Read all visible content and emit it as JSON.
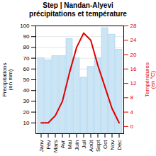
{
  "chart_data": {
    "type": "bar",
    "title": "Step | Nandan-Alyevi\nprécipitations et température",
    "categories": [
      "Janv",
      "Fév",
      "Mars",
      "Avr",
      "Mai",
      "Juin",
      "Juil",
      "Août",
      "Sept",
      "Oct",
      "Nov",
      "Déc"
    ],
    "series": [
      {
        "type": "bar",
        "color": "#cce5f5",
        "values": [
          70,
          68,
          72,
          72,
          88,
          70,
          52,
          62,
          70,
          98,
          92,
          78
        ]
      },
      {
        "type": "line",
        "axis": "y2",
        "color": "#dd0000",
        "values": [
          1,
          1,
          3,
          7,
          15,
          22,
          26,
          24,
          17,
          11,
          5,
          1
        ]
      }
    ],
    "ylabel": "Précipitations\n(en mm)",
    "y2label": "Températures\n(en °C)",
    "ylim": [
      0,
      100
    ],
    "yticks": [
      10,
      20,
      30,
      40,
      50,
      60,
      70,
      80,
      90,
      100
    ],
    "y2lim": [
      -2,
      28
    ],
    "y2ticks": [
      0,
      4,
      8,
      12,
      16,
      20,
      24,
      28
    ],
    "grid": true
  }
}
